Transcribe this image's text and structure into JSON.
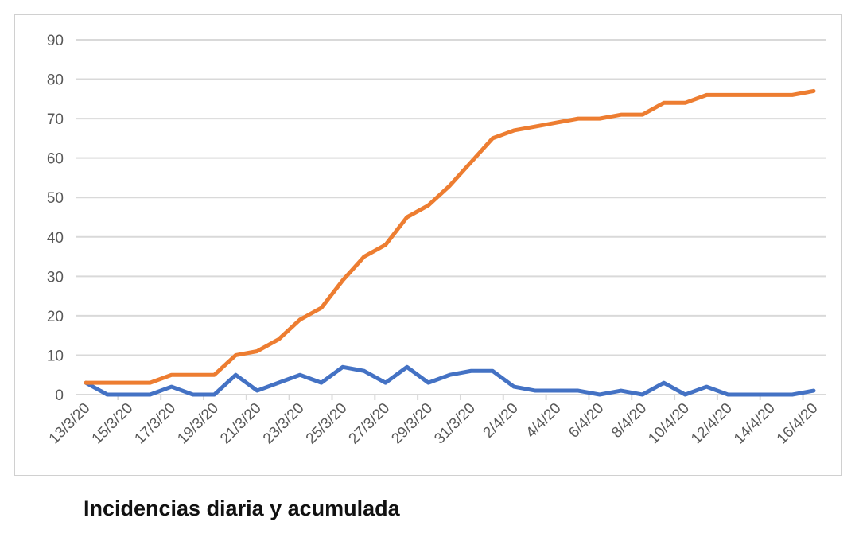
{
  "chart_data": {
    "type": "line",
    "title": "",
    "caption": "Incidencias diaria y acumulada",
    "xlabel": "",
    "ylabel": "",
    "ylim": [
      0,
      90
    ],
    "yticks": [
      0,
      10,
      20,
      30,
      40,
      50,
      60,
      70,
      80,
      90
    ],
    "grid": true,
    "legend": "none",
    "x": [
      "13/3/20",
      "14/3/20",
      "15/3/20",
      "16/3/20",
      "17/3/20",
      "18/3/20",
      "19/3/20",
      "20/3/20",
      "21/3/20",
      "22/3/20",
      "23/3/20",
      "24/3/20",
      "25/3/20",
      "26/3/20",
      "27/3/20",
      "28/3/20",
      "29/3/20",
      "30/3/20",
      "31/3/20",
      "1/4/20",
      "2/4/20",
      "3/4/20",
      "4/4/20",
      "5/4/20",
      "6/4/20",
      "7/4/20",
      "8/4/20",
      "9/4/20",
      "10/4/20",
      "11/4/20",
      "12/4/20",
      "13/4/20",
      "14/4/20",
      "15/4/20",
      "16/4/20"
    ],
    "xtick_labels": [
      "13/3/20",
      "15/3/20",
      "17/3/20",
      "19/3/20",
      "21/3/20",
      "23/3/20",
      "25/3/20",
      "27/3/20",
      "29/3/20",
      "31/3/20",
      "2/4/20",
      "4/4/20",
      "6/4/20",
      "8/4/20",
      "10/4/20",
      "12/4/20",
      "14/4/20",
      "16/4/20"
    ],
    "series": [
      {
        "color": "#4472c4",
        "values": [
          3,
          0,
          0,
          0,
          2,
          0,
          0,
          5,
          1,
          3,
          5,
          3,
          7,
          6,
          3,
          7,
          3,
          5,
          6,
          6,
          2,
          1,
          1,
          1,
          0,
          1,
          0,
          3,
          0,
          2,
          0,
          0,
          0,
          0,
          1
        ]
      },
      {
        "color": "#ed7d31",
        "values": [
          3,
          3,
          3,
          3,
          5,
          5,
          5,
          10,
          11,
          14,
          19,
          22,
          29,
          35,
          38,
          45,
          48,
          53,
          59,
          65,
          67,
          68,
          69,
          70,
          70,
          71,
          71,
          74,
          74,
          76,
          76,
          76,
          76,
          76,
          77
        ]
      }
    ]
  }
}
